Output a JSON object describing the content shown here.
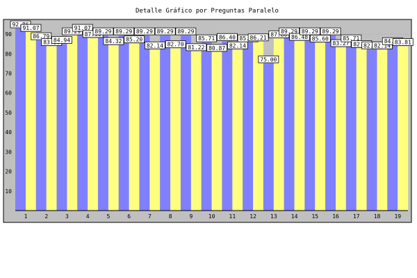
{
  "chart_data": {
    "type": "bar",
    "title": "Detalle Gráfico por Preguntas Paralelo",
    "xlabel": "",
    "ylabel": "",
    "ylim": [
      0,
      95
    ],
    "yticks": [
      10,
      20,
      30,
      40,
      50,
      60,
      70,
      80,
      90
    ],
    "grid": true,
    "legend": "none",
    "categories": [
      "1",
      "2",
      "3",
      "4",
      "5",
      "6",
      "7",
      "8",
      "9",
      "10",
      "11",
      "12",
      "13",
      "14",
      "15",
      "16",
      "17",
      "18",
      "19"
    ],
    "highlighted_categories": [
      "13",
      "14",
      "15",
      "16",
      "17",
      "18",
      "19"
    ],
    "series": [
      {
        "color": "#8080ff",
        "values": [
          92.86,
          86.79,
          84.94,
          91.07,
          89.29,
          89.29,
          89.29,
          89.29,
          89.29,
          85.71,
          86.4,
          85.71,
          75.0,
          89.29,
          89.29,
          89.29,
          85.71,
          82.14,
          84.28
        ]
      },
      {
        "color": "#ffff80",
        "values": [
          91.07,
          83.8,
          89.29,
          87.96,
          84.32,
          85.2,
          82.14,
          82.7,
          81.22,
          80.87,
          82.14,
          86.21,
          87.8,
          86.48,
          85.6,
          83.27,
          82.8,
          82.14,
          83.81
        ]
      }
    ]
  },
  "colors": {
    "page_background": "#ffffff",
    "plot_background": "#c0c0c0",
    "tick_highlight": "#ffffff"
  }
}
